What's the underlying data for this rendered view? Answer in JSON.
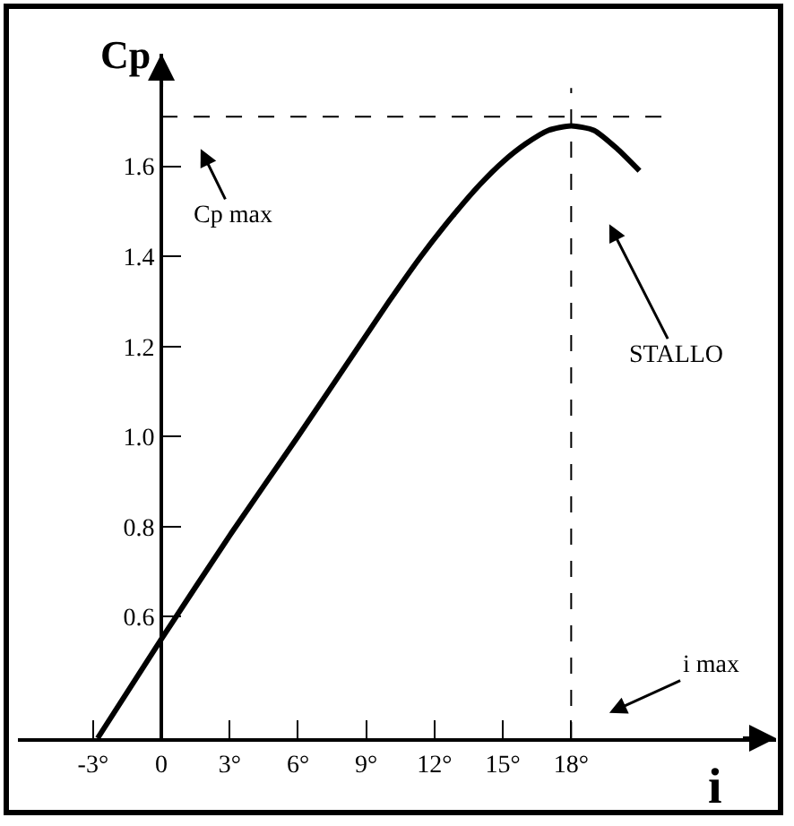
{
  "chart_data": {
    "type": "line",
    "xlabel": "i",
    "ylabel": "Cp",
    "x": [
      -2.8,
      0,
      3,
      6,
      8.8,
      10,
      11.4,
      12.8,
      14,
      15,
      16,
      17,
      18,
      19,
      20,
      21
    ],
    "series": [
      {
        "color": "#000000",
        "values": [
          0.33,
          0.55,
          0.78,
          1.0,
          1.21,
          1.3,
          1.4,
          1.49,
          1.56,
          1.61,
          1.65,
          1.68,
          1.69,
          1.68,
          1.64,
          1.59
        ]
      }
    ],
    "xlim": [
      -6.3,
      27
    ],
    "ylim": [
      0.33,
      1.85
    ],
    "xticks": [
      {
        "value": -3,
        "label": "-3°"
      },
      0,
      {
        "value": 3,
        "label": "3°"
      },
      {
        "value": 6,
        "label": "6°"
      },
      {
        "value": 9,
        "label": "9°"
      },
      {
        "value": 12,
        "label": "12°"
      },
      {
        "value": 15,
        "label": "15°"
      },
      {
        "value": 18,
        "label": "18°"
      }
    ],
    "yticks": [
      0.6,
      0.8,
      {
        "value": 1,
        "label": "1.0"
      },
      1.2,
      1.4,
      1.6
    ],
    "ref_lines": [
      {
        "axis": "y",
        "value": 1.71,
        "color": "#000000",
        "line_style": "dashed"
      },
      {
        "axis": "x",
        "value": 18,
        "color": "#000000",
        "line_style": "dashed"
      }
    ],
    "annotations": [
      "Cp max",
      "STALLO",
      "i max"
    ],
    "grid": false,
    "marker": "none",
    "line_style": "solid"
  }
}
